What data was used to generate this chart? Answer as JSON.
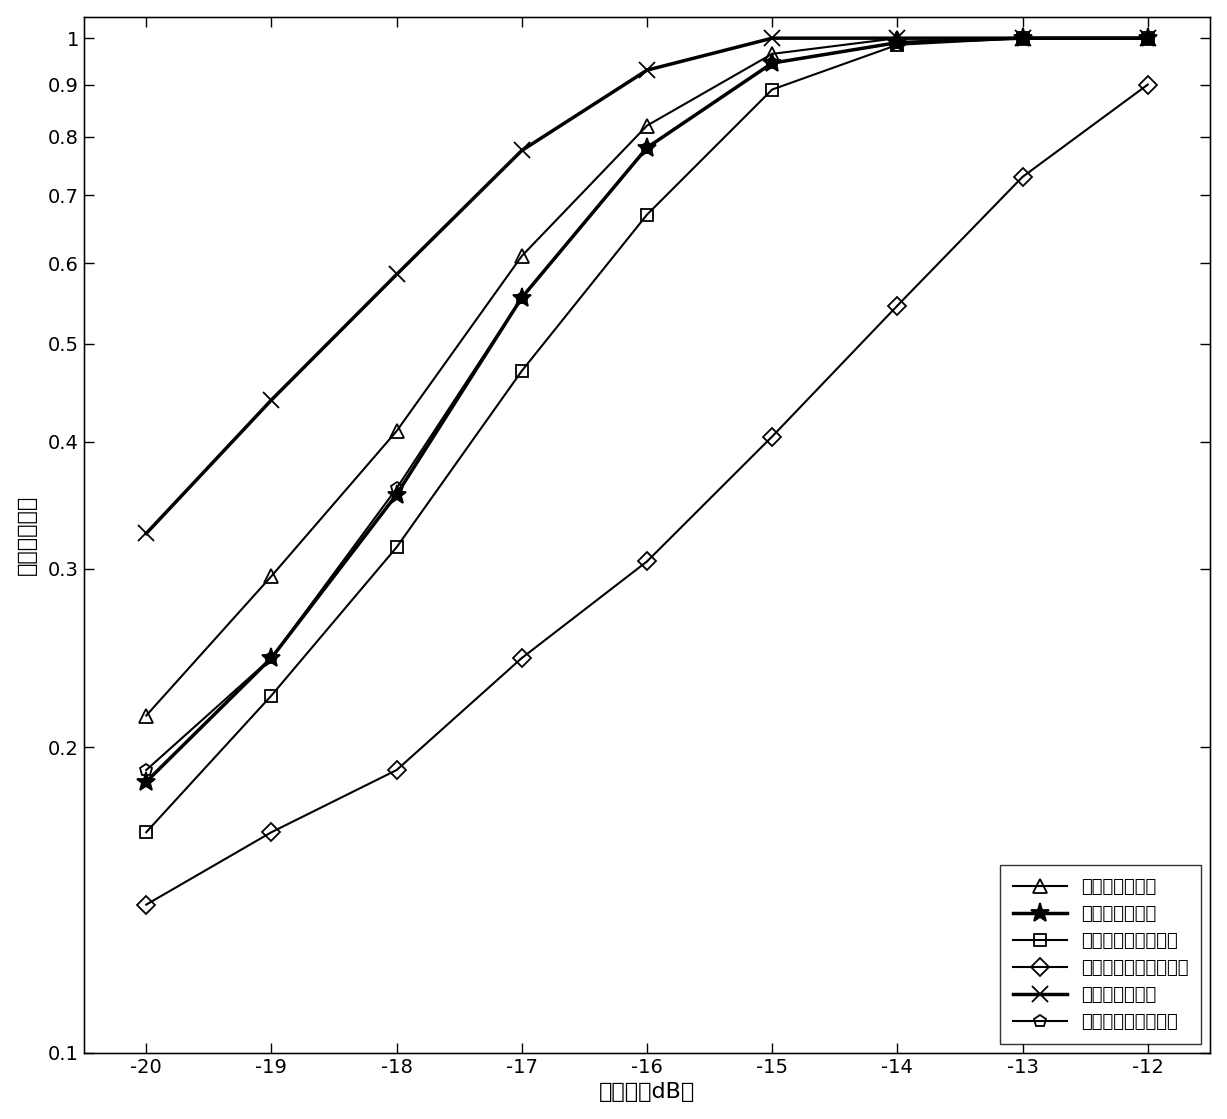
{
  "snr": [
    -20,
    -19,
    -18,
    -17,
    -16,
    -15,
    -14,
    -13,
    -12
  ],
  "series": [
    {
      "label": "差分特征值检测",
      "values": [
        0.215,
        0.295,
        0.41,
        0.61,
        0.82,
        0.965,
        1.0,
        1.0,
        1.0
      ],
      "marker": "^",
      "lw": 1.5,
      "ms": 10,
      "mfc": "none",
      "mec": "black"
    },
    {
      "label": "最大特征值检测",
      "values": [
        0.185,
        0.245,
        0.355,
        0.555,
        0.78,
        0.945,
        0.99,
        1.0,
        1.0
      ],
      "marker": "*",
      "lw": 2.5,
      "ms": 14,
      "mfc": "black",
      "mec": "black"
    },
    {
      "label": "最大最小特征值检测",
      "values": [
        0.165,
        0.225,
        0.315,
        0.47,
        0.67,
        0.89,
        0.985,
        1.0,
        1.0
      ],
      "marker": "s",
      "lw": 1.5,
      "ms": 9,
      "mfc": "none",
      "mec": "black"
    },
    {
      "label": "能量比最小特征值检测",
      "values": [
        0.14,
        0.165,
        0.19,
        0.245,
        0.305,
        0.405,
        0.545,
        0.73,
        0.9
      ],
      "marker": "D",
      "lw": 1.5,
      "ms": 9,
      "mfc": "none",
      "mec": "black"
    },
    {
      "label": "广义似然比检测",
      "values": [
        0.325,
        0.44,
        0.585,
        0.775,
        0.93,
        1.0,
        1.0,
        1.0,
        1.0
      ],
      "marker": "x",
      "lw": 2.5,
      "ms": 11,
      "mfc": "none",
      "mec": "black"
    },
    {
      "label": "算术几何平均比检测",
      "values": [
        0.19,
        0.245,
        0.36,
        0.555,
        0.78,
        0.945,
        0.99,
        1.0,
        1.0
      ],
      "marker": "p",
      "lw": 1.5,
      "ms": 9,
      "mfc": "none",
      "mec": "black"
    }
  ],
  "xlabel": "信噪比（dB）",
  "ylabel": "正确检测概率",
  "xlim": [
    -20.5,
    -11.5
  ],
  "ylim_log": [
    0.1,
    1.05
  ],
  "xticks": [
    -20,
    -19,
    -18,
    -17,
    -16,
    -15,
    -14,
    -13,
    -12
  ],
  "yticks": [
    0.1,
    0.2,
    0.3,
    0.4,
    0.5,
    0.6,
    0.7,
    0.8,
    0.9,
    1.0
  ],
  "ytick_labels": [
    "0.1",
    "0.2",
    "0.3",
    "0.4",
    "0.5",
    "0.6",
    "0.7",
    "0.8",
    "0.9",
    "1"
  ],
  "legend_loc": "lower right",
  "background_color": "#ffffff",
  "label_fontsize": 16,
  "tick_fontsize": 14,
  "legend_fontsize": 13
}
